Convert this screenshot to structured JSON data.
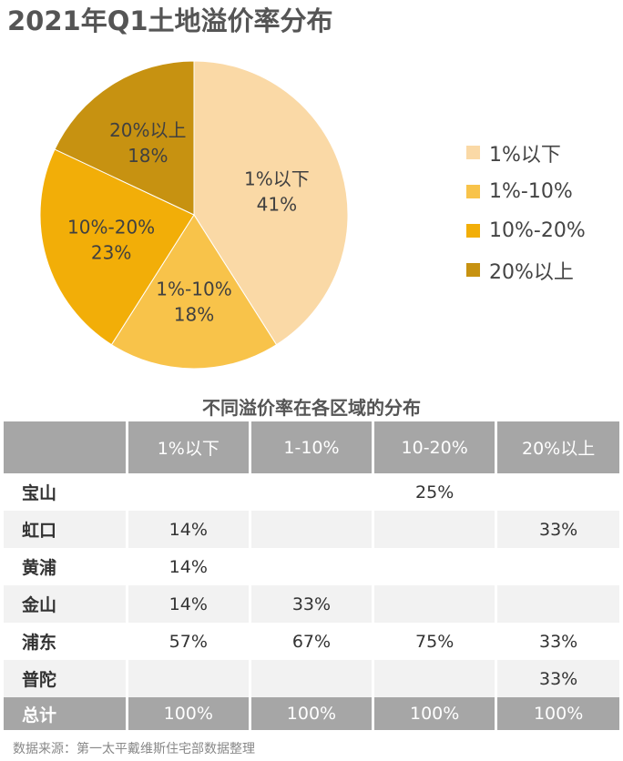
{
  "title": "2021年Q1土地溢价率分布",
  "chart_data": {
    "type": "pie",
    "categories": [
      "1%以下",
      "1%-10%",
      "10%-20%",
      "20%以上"
    ],
    "values": [
      41,
      18,
      23,
      18
    ],
    "value_labels": [
      "41%",
      "18%",
      "23%",
      "18%"
    ],
    "colors": [
      "#fad9a6",
      "#f8c34a",
      "#f2ae08",
      "#c79211"
    ],
    "legend_position": "right"
  },
  "table": {
    "title": "不同溢价率在各区域的分布",
    "headers": [
      "",
      "1%以下",
      "1-10%",
      "10-20%",
      "20%以上"
    ],
    "rows": [
      [
        "宝山",
        "",
        "",
        "25%",
        ""
      ],
      [
        "虹口",
        "14%",
        "",
        "",
        "33%"
      ],
      [
        "黄浦",
        "14%",
        "",
        "",
        ""
      ],
      [
        "金山",
        "14%",
        "33%",
        "",
        ""
      ],
      [
        "浦东",
        "57%",
        "67%",
        "75%",
        "33%"
      ],
      [
        "普陀",
        "",
        "",
        "",
        "33%"
      ]
    ],
    "total": [
      "总计",
      "100%",
      "100%",
      "100%",
      "100%"
    ]
  },
  "source": "数据来源：第一太平戴维斯住宅部数据整理"
}
